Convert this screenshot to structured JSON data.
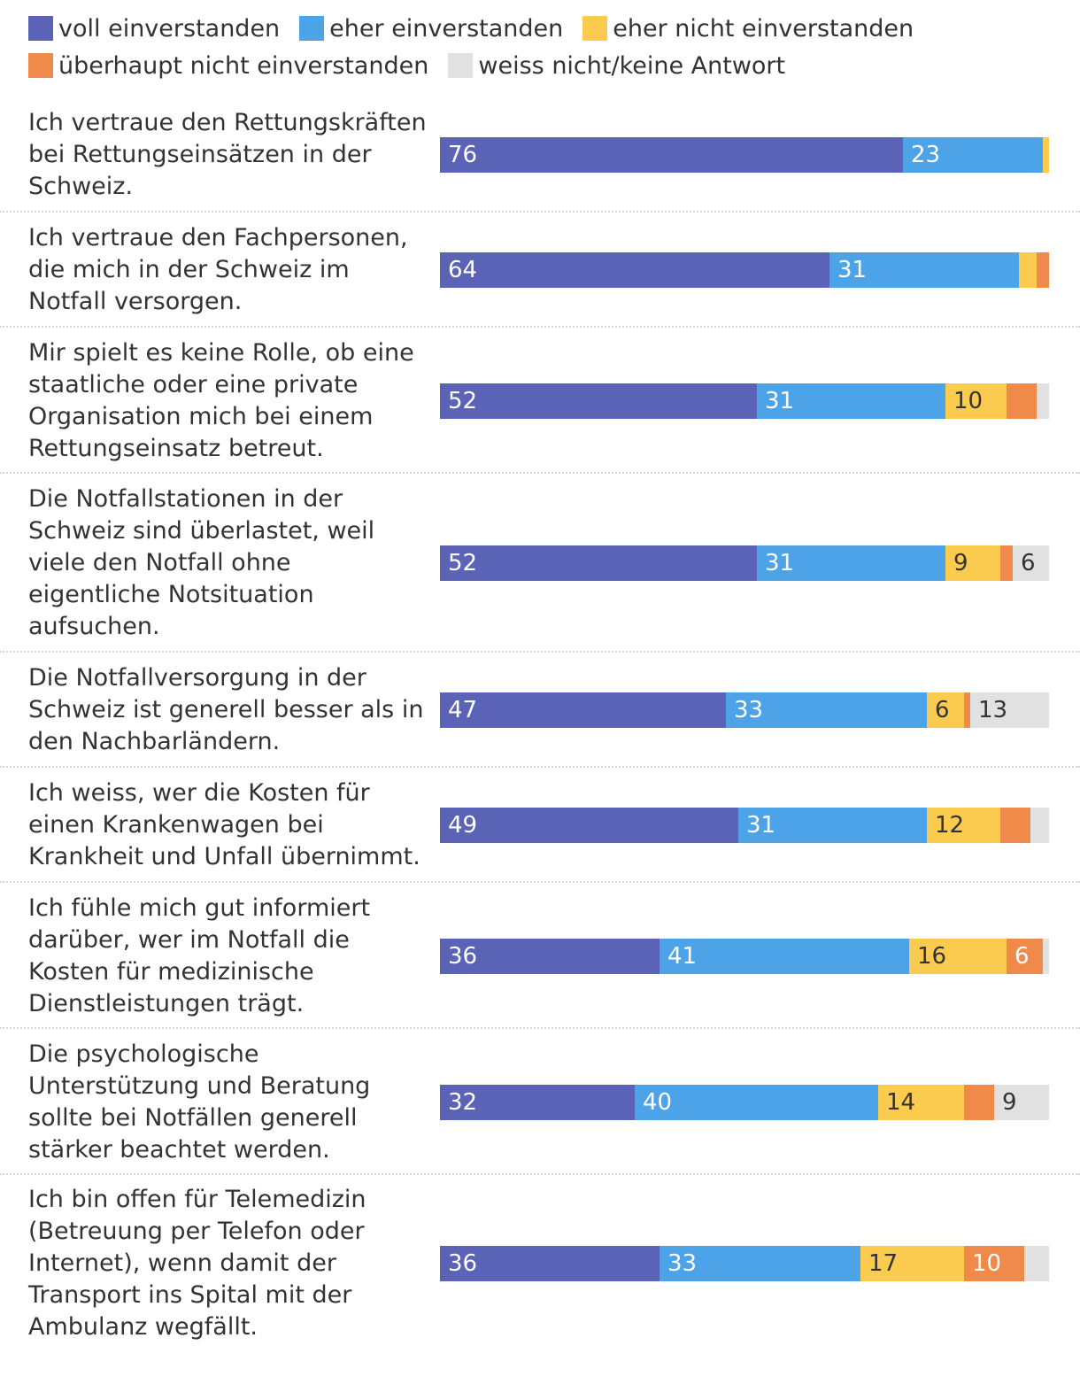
{
  "chart_data": {
    "type": "bar",
    "orientation": "horizontal",
    "stacked": true,
    "legend_position": "top",
    "series": [
      {
        "name": "voll einverstanden",
        "color": "#5b63b6",
        "text_color": "#ffffff"
      },
      {
        "name": "eher einverstanden",
        "color": "#4da3e8",
        "text_color": "#ffffff"
      },
      {
        "name": "eher nicht einverstanden",
        "color": "#fbcb4f",
        "text_color": "#333333"
      },
      {
        "name": "überhaupt nicht einverstanden",
        "color": "#ef8a4a",
        "text_color": "#ffffff"
      },
      {
        "name": "weiss nicht/keine Antwort",
        "color": "#e1e1e1",
        "text_color": "#333333"
      }
    ],
    "rows": [
      {
        "label": "Ich vertraue den Rettungskräften bei Rettungseinsätzen in der Schweiz.",
        "values": [
          76,
          23,
          1,
          0,
          0
        ],
        "labels": [
          "76",
          "23",
          "",
          "",
          ""
        ]
      },
      {
        "label": "Ich vertraue den Fachpersonen, die mich in der Schweiz im Notfall versorgen.",
        "values": [
          64,
          31,
          3,
          2,
          0
        ],
        "labels": [
          "64",
          "31",
          "",
          "",
          ""
        ]
      },
      {
        "label": "Mir spielt es keine Rolle, ob eine staatliche oder eine private Organisation mich bei einem Rettungseinsatz betreut.",
        "values": [
          52,
          31,
          10,
          5,
          2
        ],
        "labels": [
          "52",
          "31",
          "10",
          "",
          ""
        ]
      },
      {
        "label": "Die Notfallstationen in der Schweiz sind überlastet, weil viele den Notfall ohne eigentliche Notsituation aufsuchen.",
        "values": [
          52,
          31,
          9,
          2,
          6
        ],
        "labels": [
          "52",
          "31",
          "9",
          "",
          "6"
        ]
      },
      {
        "label": "Die Notfallversorgung in der Schweiz ist generell besser als in den Nachbarländern.",
        "values": [
          47,
          33,
          6,
          1,
          13
        ],
        "labels": [
          "47",
          "33",
          "6",
          "",
          "13"
        ]
      },
      {
        "label": "Ich weiss, wer die Kosten für einen Krankenwagen bei Krankheit und Unfall übernimmt.",
        "values": [
          49,
          31,
          12,
          5,
          3
        ],
        "labels": [
          "49",
          "31",
          "12",
          "",
          ""
        ]
      },
      {
        "label": "Ich fühle mich gut informiert darüber, wer im Notfall die Kosten für medizinische Dienstleistungen trägt.",
        "values": [
          36,
          41,
          16,
          6,
          1
        ],
        "labels": [
          "36",
          "41",
          "16",
          "6",
          ""
        ]
      },
      {
        "label": "Die psychologische Unterstützung und Beratung sollte bei Notfällen generell stärker beachtet werden.",
        "values": [
          32,
          40,
          14,
          5,
          9
        ],
        "labels": [
          "32",
          "40",
          "14",
          "",
          "9"
        ]
      },
      {
        "label": "Ich bin offen für Telemedizin (Betreuung per Telefon oder Internet), wenn damit der Transport ins Spital mit der Ambulanz wegfällt.",
        "values": [
          36,
          33,
          17,
          10,
          4
        ],
        "labels": [
          "36",
          "33",
          "17",
          "10",
          ""
        ]
      }
    ],
    "xlim": [
      0,
      100
    ],
    "unit": "%"
  }
}
